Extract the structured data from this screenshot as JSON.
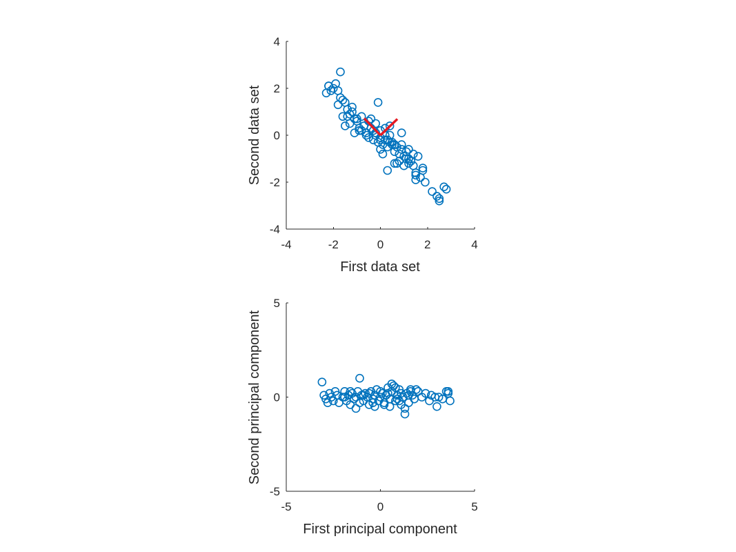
{
  "colors": {
    "marker": "#0072BD",
    "vector": "#E41B23",
    "axis": "#262626"
  },
  "chart_data": [
    {
      "type": "scatter",
      "title": "",
      "xlabel": "First data set",
      "ylabel": "Second data set",
      "xlim": [
        -4,
        4
      ],
      "ylim": [
        -4,
        4
      ],
      "xticks": [
        -4,
        -2,
        0,
        2,
        4
      ],
      "yticks": [
        -4,
        -2,
        0,
        2,
        4
      ],
      "xtick_labels": [
        "-4",
        "-2",
        "0",
        "2",
        "4"
      ],
      "ytick_labels": [
        "-4",
        "-2",
        "0",
        "2",
        "4"
      ],
      "grid": false,
      "marker": "open-circle",
      "lines": [
        {
          "name": "principal-axis-1",
          "x": [
            0,
            0.72
          ],
          "y": [
            0,
            0.69
          ]
        },
        {
          "name": "principal-axis-2",
          "x": [
            0,
            -0.69
          ],
          "y": [
            0,
            0.72
          ]
        }
      ],
      "series": [
        {
          "x": [
            -2.2,
            -2.0,
            -2.3,
            -1.9,
            -1.7,
            -2.1,
            -1.6,
            -1.8,
            -1.5,
            -1.4,
            -1.3,
            -1.6,
            -1.2,
            -1.1,
            -1.0,
            -1.5,
            -1.3,
            -0.9,
            -0.8,
            -1.1,
            -0.7,
            -0.6,
            -0.5,
            -0.9,
            -0.4,
            -0.3,
            -0.2,
            -0.6,
            -0.1,
            0.0,
            0.1,
            -0.3,
            0.2,
            0.3,
            0.4,
            0.0,
            0.5,
            0.6,
            0.7,
            0.3,
            0.8,
            0.9,
            1.0,
            0.6,
            1.1,
            1.2,
            1.3,
            0.9,
            1.4,
            1.5,
            1.6,
            1.2,
            1.7,
            1.8,
            1.9,
            1.5,
            2.2,
            2.5,
            2.8,
            2.4,
            -1.7,
            -0.1,
            0.4,
            0.9,
            -2.2,
            -1.8,
            -1.2,
            -0.8,
            -0.2,
            0.2,
            0.6,
            1.0,
            1.4,
            1.8,
            2.7,
            2.5,
            -0.4,
            0.0,
            0.3,
            0.7,
            1.1,
            1.5,
            -1.4,
            -1.0,
            0.1,
            0.5,
            0.8,
            1.2,
            -0.5,
            0.2,
            0.6,
            0.4,
            0.0,
            -0.2
          ],
          "y": [
            2.1,
            2.0,
            1.8,
            2.2,
            1.6,
            1.9,
            1.5,
            1.3,
            1.4,
            1.1,
            0.9,
            0.8,
            1.0,
            0.7,
            0.6,
            0.4,
            0.5,
            0.3,
            0.2,
            0.1,
            0.4,
            0.0,
            -0.1,
            0.2,
            0.3,
            -0.2,
            0.0,
            0.1,
            -0.3,
            -0.1,
            -0.4,
            0.2,
            -0.2,
            -0.5,
            -0.3,
            -0.6,
            -0.4,
            -0.7,
            -0.5,
            -0.2,
            -0.8,
            -0.6,
            -0.9,
            -1.2,
            -0.7,
            -1.0,
            -1.1,
            -0.4,
            -1.3,
            -1.6,
            -0.9,
            -1.2,
            -1.8,
            -1.5,
            -2.0,
            -1.7,
            -2.4,
            -2.8,
            -2.3,
            -2.6,
            2.7,
            1.4,
            0.4,
            0.1,
            2.1,
            1.9,
            1.2,
            0.8,
            0.5,
            0.0,
            -0.4,
            -1.3,
            -0.8,
            -1.4,
            -2.2,
            -2.7,
            0.7,
            -0.2,
            -1.5,
            -1.2,
            -1.0,
            -1.9,
            0.8,
            0.7,
            -0.8,
            -0.3,
            -1.1,
            -0.6,
            0.6,
            0.3,
            -0.4,
            0.0,
            0.2,
            0.1
          ]
        }
      ]
    },
    {
      "type": "scatter",
      "title": "",
      "xlabel": "First principal component",
      "ylabel": "Second principal component",
      "xlim": [
        -5,
        5
      ],
      "ylim": [
        -5,
        5
      ],
      "xticks": [
        -5,
        0,
        5
      ],
      "yticks": [
        -5,
        0,
        5
      ],
      "xtick_labels": [
        "-5",
        "0",
        "5"
      ],
      "ytick_labels": [
        "-5",
        "0",
        "5"
      ],
      "grid": false,
      "marker": "open-circle",
      "series": [
        {
          "x": [
            -3.1,
            -3.0,
            -2.9,
            -2.7,
            -2.6,
            -2.5,
            -2.3,
            -2.2,
            -2.0,
            -1.9,
            -1.8,
            -1.7,
            -1.6,
            -1.5,
            -1.4,
            -1.3,
            -1.2,
            -1.1,
            -1.0,
            -0.9,
            -0.8,
            -0.7,
            -0.6,
            -0.5,
            -0.4,
            -0.3,
            -0.2,
            -0.1,
            0.0,
            0.1,
            0.2,
            0.3,
            0.4,
            0.5,
            0.6,
            0.7,
            0.8,
            0.9,
            1.0,
            1.1,
            1.2,
            1.3,
            1.4,
            1.5,
            1.6,
            1.7,
            1.8,
            2.0,
            2.2,
            2.4,
            2.7,
            3.0,
            3.3,
            3.5,
            3.6,
            3.7,
            -1.1,
            0.6,
            1.3,
            -2.8,
            -1.6,
            -0.3,
            0.4,
            1.0,
            1.9,
            2.6,
            -2.4,
            -1.3,
            -0.6,
            0.2,
            0.8,
            1.5,
            3.1,
            -0.9,
            0.0,
            0.5,
            1.1,
            -1.9,
            -0.4,
            0.3,
            0.9,
            1.6,
            2.9,
            3.6
          ],
          "y": [
            0.8,
            0.1,
            -0.1,
            0.2,
            0.0,
            -0.2,
            0.1,
            -0.3,
            0.0,
            0.3,
            -0.2,
            0.1,
            -0.4,
            0.2,
            -0.1,
            0.0,
            0.3,
            -0.3,
            0.1,
            -0.2,
            0.2,
            0.0,
            -0.4,
            0.3,
            -0.1,
            0.1,
            0.4,
            -0.2,
            0.0,
            0.2,
            -0.3,
            0.1,
            0.5,
            -0.1,
            0.3,
            0.6,
            -0.2,
            0.1,
            0.4,
            -0.4,
            0.0,
            -0.9,
            0.2,
            -0.3,
            0.4,
            0.1,
            -0.1,
            0.3,
            0.0,
            0.2,
            0.1,
            -0.5,
            -0.1,
            0.3,
            0.2,
            -0.2,
            1.0,
            0.7,
            -0.6,
            -0.3,
            0.3,
            -0.5,
            0.2,
            -0.2,
            0.4,
            -0.2,
            0.3,
            -0.6,
            0.2,
            -0.4,
            0.5,
            0.1,
            0.0,
            0.1,
            0.3,
            -0.5,
            0.2,
            0.0,
            -0.3,
            0.1,
            -0.1,
            0.3,
            0.0,
            0.3
          ]
        }
      ]
    }
  ]
}
